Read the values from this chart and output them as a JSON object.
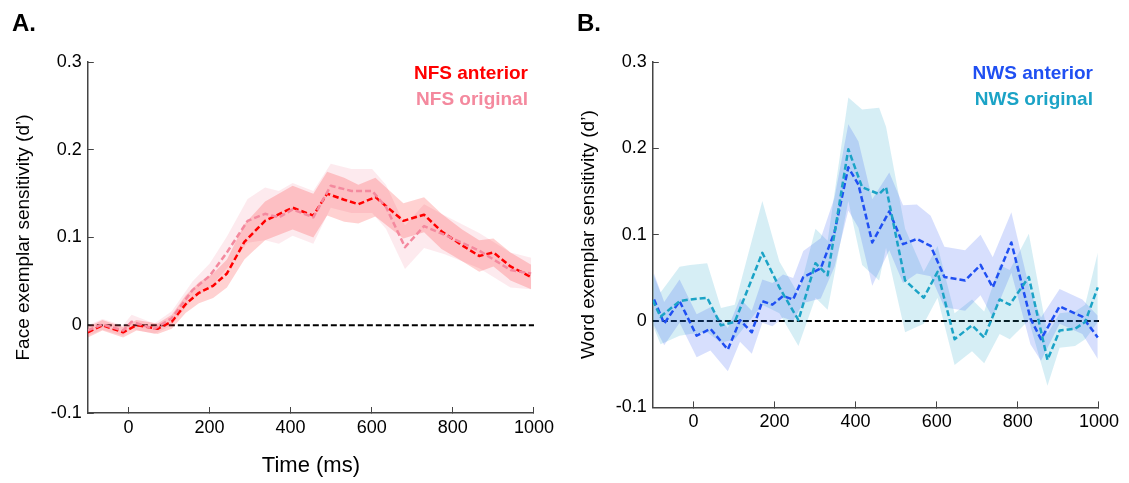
{
  "chart_data": [
    {
      "type": "line",
      "title": "A.",
      "xlabel": "Time (ms)",
      "ylabel": "Face exemplar sensitivity (d’)",
      "xlim": [
        -100,
        1000
      ],
      "xticks": [
        0,
        200,
        400,
        600,
        800,
        1000
      ],
      "ylim": [
        -0.1,
        0.3
      ],
      "yticks": [
        -0.1,
        0,
        0.1,
        0.2,
        0.3
      ],
      "grid": false,
      "legend": "top right",
      "marker": "none",
      "ref_lines": [
        {
          "axis": "y",
          "value": 0,
          "color": "#000000",
          "line_style": "dashed"
        }
      ],
      "series": [
        {
          "name": "NFS anterior",
          "color": "#ff0000",
          "line_style": "dashed",
          "x": [
            -100,
            -64,
            -13,
            20,
            72,
            107,
            141,
            174,
            209,
            243,
            286,
            337,
            405,
            456,
            490,
            532,
            567,
            609,
            678,
            729,
            772,
            823,
            865,
            900,
            942,
            993
          ],
          "values": [
            -0.008,
            0,
            -0.008,
            0,
            -0.004,
            0.004,
            0.024,
            0.037,
            0.045,
            0.059,
            0.095,
            0.119,
            0.134,
            0.125,
            0.15,
            0.143,
            0.138,
            0.146,
            0.119,
            0.126,
            0.107,
            0.091,
            0.079,
            0.083,
            0.067,
            0.055
          ],
          "lower": [
            -0.014,
            -0.006,
            -0.014,
            -0.006,
            -0.01,
            -0.004,
            0.014,
            0.025,
            0.031,
            0.043,
            0.075,
            0.097,
            0.109,
            0.1,
            0.125,
            0.118,
            0.116,
            0.124,
            0.099,
            0.106,
            0.087,
            0.073,
            0.061,
            0.067,
            0.051,
            0.041
          ],
          "upper": [
            -0.002,
            0.006,
            -0.002,
            0.006,
            0.002,
            0.012,
            0.034,
            0.049,
            0.059,
            0.075,
            0.115,
            0.141,
            0.159,
            0.15,
            0.175,
            0.168,
            0.16,
            0.168,
            0.139,
            0.146,
            0.127,
            0.109,
            0.097,
            0.099,
            0.083,
            0.069
          ]
        },
        {
          "name": "NFS original",
          "color": "#f4899e",
          "line_style": "dashed",
          "x": [
            -100,
            -64,
            -13,
            8,
            64,
            107,
            158,
            200,
            243,
            294,
            337,
            371,
            405,
            456,
            499,
            550,
            601,
            635,
            682,
            729,
            780,
            865,
            942,
            993
          ],
          "values": [
            -0.006,
            0.001,
            -0.006,
            0.004,
            -0.004,
            0.008,
            0.04,
            0.056,
            0.083,
            0.119,
            0.127,
            0.123,
            0.132,
            0.123,
            0.159,
            0.153,
            0.153,
            0.135,
            0.089,
            0.113,
            0.103,
            0.085,
            0.063,
            0.059
          ],
          "lower": [
            -0.012,
            -0.005,
            -0.012,
            -0.004,
            -0.01,
            0,
            0.03,
            0.042,
            0.065,
            0.094,
            0.097,
            0.093,
            0.102,
            0.093,
            0.134,
            0.128,
            0.128,
            0.11,
            0.064,
            0.088,
            0.081,
            0.065,
            0.043,
            0.041
          ],
          "upper": [
            0,
            0.007,
            0,
            0.012,
            0.002,
            0.016,
            0.05,
            0.07,
            0.101,
            0.144,
            0.157,
            0.153,
            0.162,
            0.153,
            0.184,
            0.178,
            0.178,
            0.16,
            0.114,
            0.138,
            0.125,
            0.105,
            0.083,
            0.077
          ]
        }
      ]
    },
    {
      "type": "line",
      "title": "B.",
      "ylabel": "Word exemplar sensitivity (d’)",
      "xlim": [
        -100,
        1000
      ],
      "xticks": [
        0,
        200,
        400,
        600,
        800,
        1000
      ],
      "ylim": [
        -0.1,
        0.3
      ],
      "yticks": [
        -0.1,
        0,
        0.1,
        0.2,
        0.3
      ],
      "grid": false,
      "legend": "top right",
      "marker": "none",
      "ref_lines": [
        {
          "axis": "y",
          "value": 0,
          "color": "#000000",
          "line_style": "dashed"
        }
      ],
      "series": [
        {
          "name": "NWS anterior",
          "color": "#1f4ff2",
          "line_style": "dashed",
          "x": [
            -97,
            -72,
            -34,
            8,
            42,
            85,
            115,
            144,
            170,
            195,
            221,
            246,
            271,
            314,
            348,
            382,
            407,
            441,
            483,
            517,
            551,
            585,
            619,
            670,
            708,
            738,
            784,
            831,
            857,
            903,
            959,
            997
          ],
          "values": [
            0.025,
            -0.003,
            0.023,
            -0.017,
            -0.009,
            -0.033,
            0.001,
            -0.013,
            0.023,
            0.019,
            0.029,
            0.025,
            0.051,
            0.061,
            0.103,
            0.178,
            0.158,
            0.091,
            0.127,
            0.089,
            0.095,
            0.087,
            0.051,
            0.047,
            0.065,
            0.039,
            0.091,
            0.003,
            -0.021,
            0.017,
            0.005,
            -0.019
          ],
          "lower": [
            -0.005,
            -0.028,
            -0.002,
            -0.042,
            -0.034,
            -0.058,
            -0.024,
            -0.038,
            -0.002,
            -0.006,
            0.004,
            0,
            0.021,
            0.026,
            0.063,
            0.128,
            0.108,
            0.041,
            0.082,
            0.044,
            0.055,
            0.052,
            0.016,
            0.012,
            0.03,
            0.004,
            0.056,
            -0.027,
            -0.046,
            -0.003,
            -0.015,
            -0.044
          ],
          "upper": [
            0.055,
            0.022,
            0.048,
            0.008,
            0.016,
            -0.008,
            0.026,
            0.012,
            0.048,
            0.044,
            0.054,
            0.05,
            0.081,
            0.096,
            0.143,
            0.228,
            0.208,
            0.141,
            0.172,
            0.134,
            0.135,
            0.122,
            0.086,
            0.082,
            0.1,
            0.074,
            0.126,
            0.033,
            0.004,
            0.037,
            0.025,
            0.006
          ]
        },
        {
          "name": "NWS original",
          "color": "#1ba3c6",
          "line_style": "dashed",
          "x": [
            -100,
            -81,
            -34,
            -8,
            34,
            68,
            102,
            170,
            212,
            259,
            301,
            331,
            382,
            416,
            458,
            475,
            522,
            568,
            602,
            644,
            687,
            717,
            755,
            780,
            827,
            873,
            903,
            941,
            966,
            997
          ],
          "values": [
            0.024,
            0.005,
            0.023,
            0.025,
            0.027,
            -0.005,
            -0.001,
            0.079,
            0.039,
            0.001,
            0.067,
            0.053,
            0.199,
            0.155,
            0.147,
            0.155,
            0.047,
            0.027,
            0.057,
            -0.021,
            -0.005,
            -0.019,
            0.025,
            0.019,
            0.051,
            -0.045,
            -0.011,
            -0.009,
            -0.001,
            0.039
          ],
          "lower": [
            -0.005,
            -0.027,
            -0.017,
            -0.015,
            -0.013,
            -0.025,
            -0.021,
            0.019,
            0.009,
            -0.029,
            0.027,
            0.013,
            0.139,
            0.065,
            0.047,
            0.085,
            -0.013,
            -0.003,
            0.027,
            -0.051,
            -0.035,
            -0.049,
            -0.015,
            -0.021,
            0.001,
            -0.075,
            -0.031,
            -0.029,
            -0.021,
            -0.001
          ],
          "upper": [
            0.055,
            0.033,
            0.063,
            0.065,
            0.067,
            0.015,
            0.019,
            0.139,
            0.069,
            0.031,
            0.107,
            0.093,
            0.259,
            0.245,
            0.247,
            0.225,
            0.107,
            0.057,
            0.087,
            0.009,
            0.025,
            0.011,
            0.065,
            0.059,
            0.101,
            -0.015,
            0.009,
            0.011,
            0.019,
            0.079
          ]
        }
      ]
    }
  ]
}
